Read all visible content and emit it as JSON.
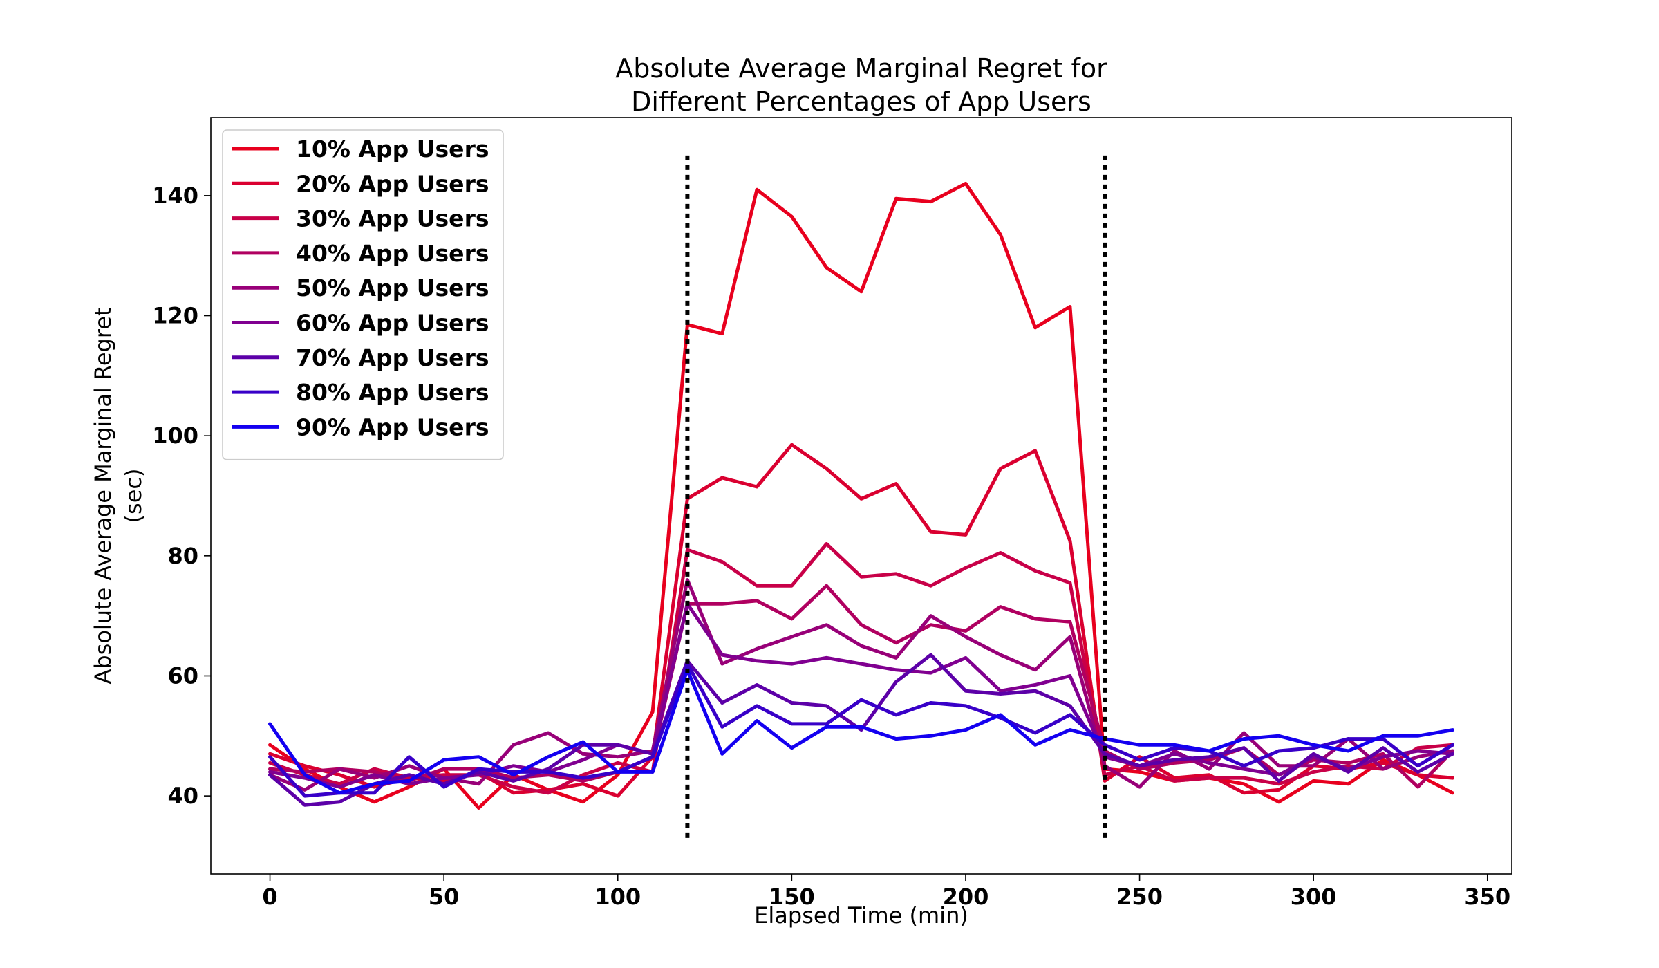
{
  "chart_data": {
    "type": "line",
    "title": "Absolute Average Marginal Regret for\nDifferent Percentages of App Users",
    "xlabel": "Elapsed Time (min)",
    "ylabel": "Absolute Average Marginal Regret\n(sec)",
    "xlim": [
      -17,
      357
    ],
    "ylim": [
      27,
      153
    ],
    "xticks": [
      0,
      50,
      100,
      150,
      200,
      250,
      300,
      350
    ],
    "yticks": [
      40,
      60,
      80,
      100,
      120,
      140
    ],
    "grid": false,
    "legend_position": "upper-left",
    "vlines": [
      {
        "x": 120,
        "y_range": [
          33,
          147
        ],
        "style": "dotted",
        "color": "#000000"
      },
      {
        "x": 240,
        "y_range": [
          33,
          147
        ],
        "style": "dotted",
        "color": "#000000"
      }
    ],
    "x": [
      0,
      10,
      20,
      30,
      40,
      50,
      60,
      70,
      80,
      90,
      100,
      110,
      120,
      130,
      140,
      150,
      160,
      170,
      180,
      190,
      200,
      210,
      220,
      230,
      240,
      250,
      260,
      270,
      280,
      290,
      300,
      310,
      320,
      330,
      340
    ],
    "series": [
      {
        "name": "10% App Users",
        "color": "#e8001e",
        "values": [
          48.5,
          44.5,
          41.5,
          39.0,
          41.5,
          44.5,
          38.0,
          43.5,
          41.0,
          39.0,
          43.5,
          54.0,
          118.5,
          117.0,
          141.0,
          136.5,
          128.0,
          124.0,
          139.5,
          139.0,
          142.0,
          133.5,
          118.0,
          121.5,
          44.5,
          44.0,
          42.5,
          43.0,
          42.0,
          39.0,
          42.5,
          42.0,
          46.0,
          43.5,
          40.5
        ]
      },
      {
        "name": "20% App Users",
        "color": "#da0030",
        "values": [
          47.0,
          45.0,
          43.5,
          41.5,
          43.0,
          42.5,
          44.0,
          40.5,
          41.0,
          42.0,
          40.0,
          46.5,
          89.5,
          93.0,
          91.5,
          98.5,
          94.5,
          89.5,
          92.0,
          84.0,
          83.5,
          94.5,
          97.5,
          82.5,
          42.5,
          46.5,
          43.0,
          43.5,
          40.5,
          41.0,
          45.0,
          44.5,
          45.5,
          43.5,
          43.0
        ]
      },
      {
        "name": "30% App Users",
        "color": "#c80048",
        "values": [
          45.5,
          43.5,
          42.0,
          44.5,
          43.0,
          43.5,
          43.5,
          41.5,
          40.5,
          43.5,
          45.5,
          44.0,
          81.0,
          79.0,
          75.0,
          75.0,
          82.0,
          76.5,
          77.0,
          75.0,
          78.0,
          80.5,
          77.5,
          75.5,
          43.5,
          45.0,
          42.5,
          43.0,
          43.0,
          42.0,
          44.0,
          45.0,
          44.5,
          48.0,
          48.5
        ]
      },
      {
        "name": "40% App Users",
        "color": "#b00060",
        "values": [
          44.5,
          44.0,
          44.5,
          44.0,
          42.5,
          44.5,
          44.5,
          43.0,
          43.5,
          42.5,
          44.0,
          46.5,
          72.0,
          72.0,
          72.5,
          69.5,
          75.0,
          68.5,
          65.5,
          68.5,
          67.5,
          71.5,
          69.5,
          69.0,
          47.5,
          44.5,
          45.5,
          46.0,
          48.0,
          43.5,
          46.0,
          45.5,
          47.0,
          41.5,
          47.5
        ]
      },
      {
        "name": "50% App Users",
        "color": "#980078",
        "values": [
          43.5,
          41.0,
          44.5,
          43.0,
          45.0,
          43.0,
          42.0,
          48.5,
          50.5,
          47.0,
          46.5,
          47.5,
          76.0,
          62.0,
          64.5,
          66.5,
          68.5,
          65.0,
          63.0,
          70.0,
          66.5,
          63.5,
          61.0,
          66.5,
          45.0,
          41.5,
          47.5,
          44.5,
          50.5,
          45.0,
          45.0,
          49.5,
          44.5,
          46.5,
          47.5
        ]
      },
      {
        "name": "60% App Users",
        "color": "#800090",
        "values": [
          44.0,
          43.0,
          41.5,
          43.5,
          42.0,
          43.0,
          43.5,
          45.0,
          44.0,
          46.0,
          48.5,
          47.0,
          72.0,
          63.5,
          62.5,
          62.0,
          63.0,
          62.0,
          61.0,
          60.5,
          63.0,
          57.5,
          58.5,
          60.0,
          46.5,
          45.0,
          47.0,
          45.5,
          44.5,
          43.5,
          46.5,
          44.5,
          46.5,
          47.5,
          47.0
        ]
      },
      {
        "name": "70% App Users",
        "color": "#5c00a8",
        "values": [
          43.5,
          38.5,
          39.0,
          42.0,
          43.5,
          42.0,
          44.0,
          42.5,
          44.5,
          48.5,
          48.5,
          47.0,
          62.5,
          55.5,
          58.5,
          55.5,
          55.0,
          51.0,
          59.0,
          63.5,
          57.5,
          57.0,
          57.5,
          55.0,
          47.0,
          45.0,
          46.0,
          46.5,
          48.0,
          42.5,
          47.0,
          44.0,
          48.0,
          44.0,
          47.0
        ]
      },
      {
        "name": "80% App Users",
        "color": "#3800c8",
        "values": [
          46.5,
          40.0,
          40.5,
          40.5,
          46.5,
          41.5,
          44.5,
          44.0,
          44.0,
          43.0,
          44.0,
          46.5,
          62.0,
          51.5,
          55.0,
          52.0,
          52.0,
          56.0,
          53.5,
          55.5,
          55.0,
          53.0,
          50.5,
          53.5,
          48.5,
          46.0,
          48.0,
          47.5,
          45.0,
          47.5,
          48.0,
          49.5,
          49.5,
          45.0,
          48.5
        ]
      },
      {
        "name": "90% App Users",
        "color": "#1400f0",
        "values": [
          52.0,
          43.5,
          40.5,
          42.0,
          42.5,
          46.0,
          46.5,
          43.5,
          46.5,
          49.0,
          44.0,
          44.0,
          61.0,
          47.0,
          52.5,
          48.0,
          51.5,
          51.5,
          49.5,
          50.0,
          51.0,
          53.5,
          48.5,
          51.0,
          49.5,
          48.5,
          48.5,
          47.5,
          49.5,
          50.0,
          48.5,
          47.5,
          50.0,
          50.0,
          51.0
        ]
      }
    ]
  }
}
